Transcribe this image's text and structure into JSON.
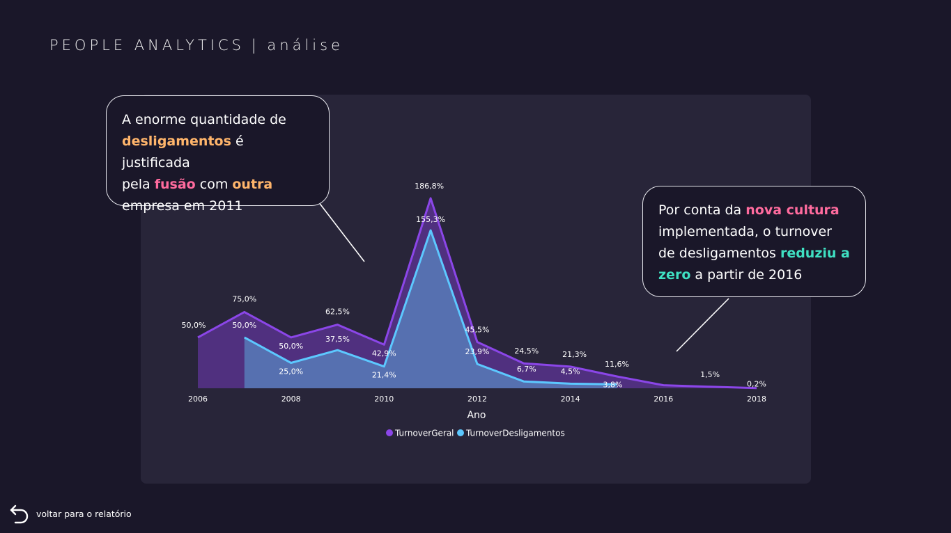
{
  "header": {
    "title_main": "PEOPLE ANALYTICS",
    "title_separator": "|",
    "title_sub": "análise"
  },
  "callouts": {
    "left": {
      "p1": "A enorme quantidade de",
      "p2_highlight": "desligamentos",
      "p3": " é justificada",
      "p4": "pela ",
      "p5_highlight": "fusão",
      "p6": " com ",
      "p7_highlight": "outra",
      "p8": "empresa em 2011"
    },
    "right": {
      "p1": "Por conta da ",
      "p2_highlight": "nova cultura",
      "p3": "implementada, o turnover",
      "p4": "de desligamentos ",
      "p5_highlight": "reduziu a",
      "p6_highlight": "zero",
      "p7": " a partir de 2016"
    }
  },
  "colors": {
    "background": "#1a1729",
    "panel": "#282539",
    "geral_line": "#8b46e8",
    "geral_fill": "#50307f",
    "deslig_line": "#5cc8ff",
    "deslig_fill": "#5670b0",
    "highlight_orange": "#ffb56b",
    "highlight_pink": "#ff6b9e",
    "highlight_teal": "#3fe0c2"
  },
  "chart_data": {
    "type": "area",
    "xlabel": "Ano",
    "x_ticks": [
      "2006",
      "2008",
      "2010",
      "2012",
      "2014",
      "2016",
      "2018"
    ],
    "x_range": [
      2006,
      2018
    ],
    "legend_position": "bottom-center",
    "series": [
      {
        "name": "TurnoverGeral",
        "x": [
          2006,
          2007,
          2008,
          2009,
          2010,
          2011,
          2012,
          2013,
          2014,
          2015,
          2016,
          2017,
          2018
        ],
        "values": [
          50.0,
          75.0,
          50.0,
          62.5,
          42.9,
          186.8,
          45.5,
          24.5,
          21.3,
          11.6,
          3.0,
          1.5,
          0.2
        ],
        "labels": [
          "50,0%",
          "75,0%",
          "50,0%",
          "62,5%",
          "42,9%",
          "186,8%",
          "45,5%",
          "24,5%",
          "21,3%",
          "11,6%",
          "",
          "1,5%",
          "0,2%"
        ]
      },
      {
        "name": "TurnoverDesligamentos",
        "x": [
          2007,
          2008,
          2009,
          2010,
          2011,
          2012,
          2013,
          2014,
          2015
        ],
        "values": [
          50.0,
          25.0,
          37.5,
          21.4,
          155.3,
          23.9,
          6.7,
          4.5,
          3.8
        ],
        "labels": [
          "50,0%",
          "25,0%",
          "37,5%",
          "21,4%",
          "155,3%",
          "23,9%",
          "6,7%",
          "4,5%",
          "3,8%"
        ]
      }
    ]
  },
  "footer": {
    "back_label": "voltar para o relatório",
    "back_icon": "undo-arrow-icon"
  }
}
